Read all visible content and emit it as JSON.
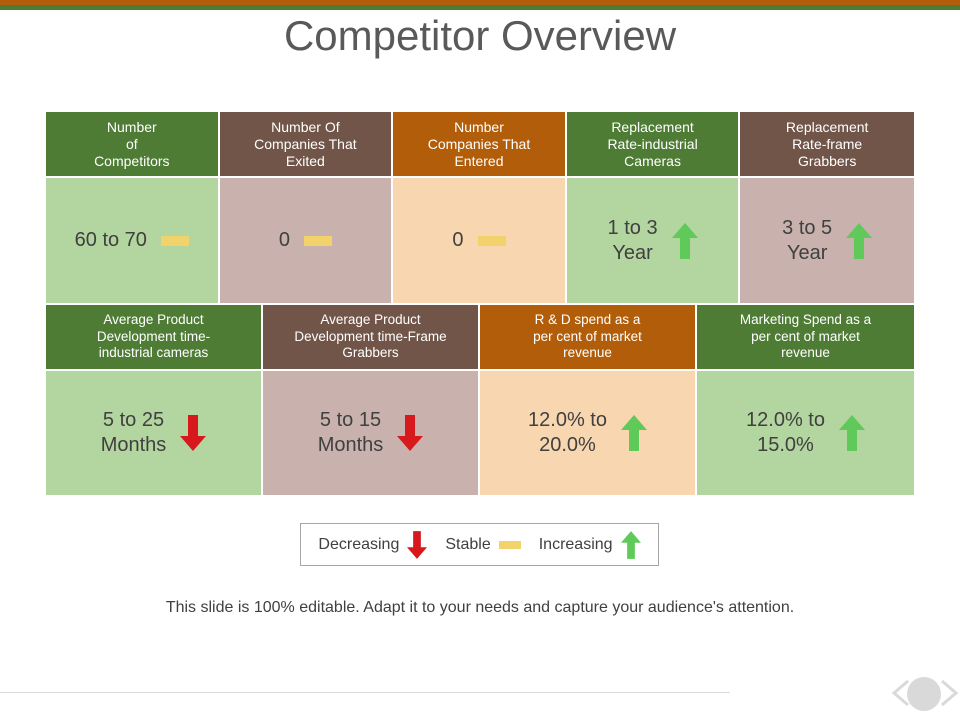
{
  "title": "Competitor Overview",
  "colors": {
    "green": "#4e7c35",
    "brown": "#715548",
    "orange": "#b25d0a",
    "up": "#5fc95a",
    "down": "#d7181c",
    "stable": "#f2d26b"
  },
  "row1": [
    {
      "header": "Number\nof\nCompetitors",
      "value": "60 to 70",
      "trend": "stable",
      "icon": "stable-bar-icon"
    },
    {
      "header": "Number Of\nCompanies That\nExited",
      "value": "0",
      "trend": "stable",
      "icon": "stable-bar-icon"
    },
    {
      "header": "Number\nCompanies That\nEntered",
      "value": "0",
      "trend": "stable",
      "icon": "stable-bar-icon"
    },
    {
      "header": "Replacement\nRate-industrial\nCameras",
      "value": "1 to 3\nYear",
      "trend": "increasing",
      "icon": "up-arrow-icon"
    },
    {
      "header": "Replacement\nRate-frame\nGrabbers",
      "value": "3 to 5\nYear",
      "trend": "increasing",
      "icon": "up-arrow-icon"
    }
  ],
  "row2": [
    {
      "header": "Average Product\nDevelopment time-\nindustrial cameras",
      "value": "5 to 25\nMonths",
      "trend": "decreasing",
      "icon": "down-arrow-icon"
    },
    {
      "header": "Average Product\nDevelopment time-Frame\nGrabbers",
      "value": "5 to 15\nMonths",
      "trend": "decreasing",
      "icon": "down-arrow-icon"
    },
    {
      "header": "R & D spend as a\nper cent of market\nrevenue",
      "value": "12.0% to\n20.0%",
      "trend": "increasing",
      "icon": "up-arrow-icon"
    },
    {
      "header": "Marketing Spend as a\nper cent of market\nrevenue",
      "value": "12.0% to\n15.0%",
      "trend": "increasing",
      "icon": "up-arrow-icon"
    }
  ],
  "legend": {
    "decreasing": "Decreasing",
    "stable": "Stable",
    "increasing": "Increasing"
  },
  "footer": "This slide is 100% editable. Adapt it to your needs and capture your audience's attention."
}
